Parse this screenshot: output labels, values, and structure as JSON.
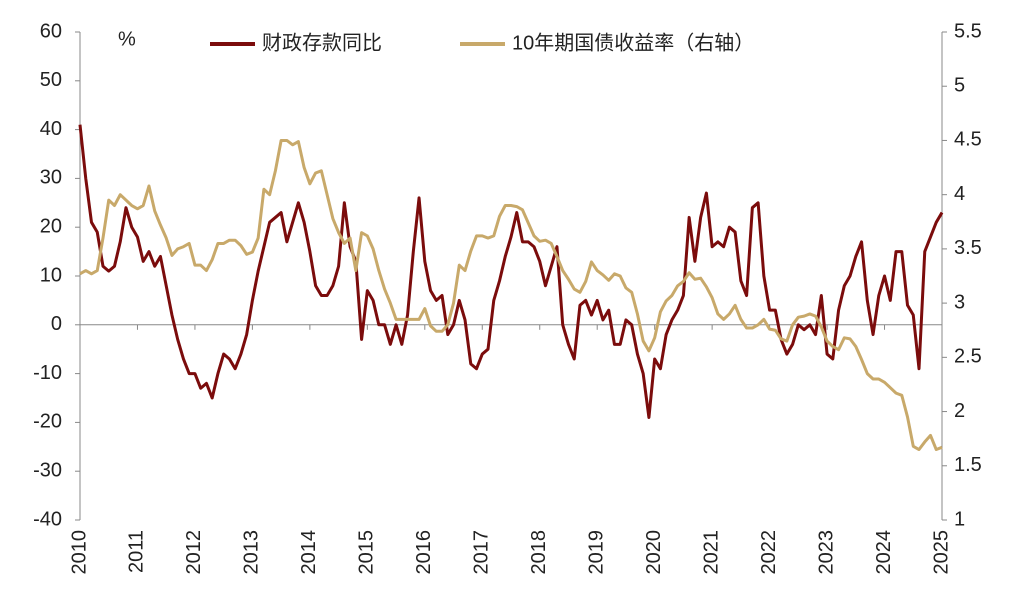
{
  "chart_data": {
    "type": "line",
    "ylabel": "%",
    "x": [
      2010,
      2010.1,
      2010.2,
      2010.3,
      2010.4,
      2010.5,
      2010.6,
      2010.7,
      2010.8,
      2010.9,
      2011,
      2011.1,
      2011.2,
      2011.3,
      2011.4,
      2011.5,
      2011.6,
      2011.7,
      2011.8,
      2011.9,
      2012,
      2012.1,
      2012.2,
      2012.3,
      2012.4,
      2012.5,
      2012.6,
      2012.7,
      2012.8,
      2012.9,
      2013,
      2013.1,
      2013.2,
      2013.3,
      2013.4,
      2013.5,
      2013.6,
      2013.7,
      2013.8,
      2013.9,
      2014,
      2014.1,
      2014.2,
      2014.3,
      2014.4,
      2014.5,
      2014.6,
      2014.7,
      2014.8,
      2014.9,
      2015,
      2015.1,
      2015.2,
      2015.3,
      2015.4,
      2015.5,
      2015.6,
      2015.7,
      2015.8,
      2015.9,
      2016,
      2016.1,
      2016.2,
      2016.3,
      2016.4,
      2016.5,
      2016.6,
      2016.7,
      2016.8,
      2016.9,
      2017,
      2017.1,
      2017.2,
      2017.3,
      2017.4,
      2017.5,
      2017.6,
      2017.7,
      2017.8,
      2017.9,
      2018,
      2018.1,
      2018.2,
      2018.3,
      2018.4,
      2018.5,
      2018.6,
      2018.7,
      2018.8,
      2018.9,
      2019,
      2019.1,
      2019.2,
      2019.3,
      2019.4,
      2019.5,
      2019.6,
      2019.7,
      2019.8,
      2019.9,
      2020,
      2020.1,
      2020.2,
      2020.3,
      2020.4,
      2020.5,
      2020.6,
      2020.7,
      2020.8,
      2020.9,
      2021,
      2021.1,
      2021.2,
      2021.3,
      2021.4,
      2021.5,
      2021.6,
      2021.7,
      2021.8,
      2021.9,
      2022,
      2022.1,
      2022.2,
      2022.3,
      2022.4,
      2022.5,
      2022.6,
      2022.7,
      2022.8,
      2022.9,
      2023,
      2023.1,
      2023.2,
      2023.3,
      2023.4,
      2023.5,
      2023.6,
      2023.7,
      2023.8,
      2023.9,
      2024,
      2024.1,
      2024.2,
      2024.3,
      2024.4,
      2024.5,
      2024.6,
      2024.7,
      2024.8,
      2024.9,
      2025
    ],
    "series": [
      {
        "name": "财政存款同比",
        "color": "#7b0c0c",
        "values": [
          41,
          30,
          21,
          19,
          12,
          11,
          12,
          17,
          24,
          20,
          18,
          13,
          15,
          12,
          14,
          8,
          2,
          -3,
          -7,
          -10,
          -10,
          -13,
          -12,
          -15,
          -10,
          -6,
          -7,
          -9,
          -6,
          -2,
          5,
          11,
          16,
          21,
          22,
          23,
          17,
          21,
          25,
          21,
          15,
          8,
          6,
          6,
          8,
          12,
          25,
          16,
          13,
          -3,
          7,
          5,
          0,
          0,
          -4,
          0,
          -4,
          2,
          15,
          26,
          13,
          7,
          5,
          6,
          -2,
          0,
          5,
          1,
          -8,
          -9,
          -6,
          -5,
          5,
          9,
          14,
          18,
          23,
          17,
          17,
          16,
          13,
          8,
          12,
          16,
          0,
          -4,
          -7,
          4,
          5,
          2,
          5,
          1,
          3,
          -4,
          -4,
          1,
          0,
          -6,
          -10,
          -19,
          -7,
          -9,
          -2,
          1,
          3,
          6,
          22,
          13,
          22,
          27,
          16,
          17,
          16,
          20,
          19,
          9,
          6,
          24,
          25,
          10,
          3,
          3,
          -3,
          -6,
          -4,
          0,
          -1,
          0,
          -2,
          6,
          -6,
          -7,
          3,
          8,
          10,
          14,
          17,
          5,
          -2,
          6,
          10,
          5,
          15,
          15,
          4,
          2,
          -9,
          15,
          18,
          21,
          23
        ]
      },
      {
        "name": "10年期国债收益率（右轴）",
        "color": "#c8a96a",
        "axis": "y2",
        "values": [
          3.27,
          3.3,
          3.27,
          3.3,
          3.6,
          3.95,
          3.9,
          4.0,
          3.95,
          3.9,
          3.87,
          3.9,
          4.08,
          3.85,
          3.72,
          3.6,
          3.44,
          3.5,
          3.52,
          3.55,
          3.35,
          3.35,
          3.3,
          3.4,
          3.55,
          3.55,
          3.58,
          3.58,
          3.53,
          3.45,
          3.47,
          3.6,
          4.05,
          4.0,
          4.22,
          4.5,
          4.5,
          4.46,
          4.49,
          4.25,
          4.1,
          4.2,
          4.22,
          4.0,
          3.78,
          3.65,
          3.55,
          3.6,
          3.3,
          3.65,
          3.62,
          3.5,
          3.3,
          3.13,
          3.0,
          2.85,
          2.85,
          2.85,
          2.85,
          2.85,
          2.95,
          2.79,
          2.74,
          2.74,
          2.8,
          3.0,
          3.35,
          3.3,
          3.48,
          3.62,
          3.62,
          3.6,
          3.62,
          3.8,
          3.9,
          3.9,
          3.89,
          3.86,
          3.74,
          3.62,
          3.57,
          3.58,
          3.55,
          3.43,
          3.3,
          3.22,
          3.13,
          3.1,
          3.2,
          3.38,
          3.3,
          3.26,
          3.21,
          3.27,
          3.25,
          3.14,
          3.1,
          2.9,
          2.65,
          2.56,
          2.68,
          2.92,
          3.02,
          3.07,
          3.16,
          3.2,
          3.28,
          3.22,
          3.23,
          3.15,
          3.05,
          2.9,
          2.85,
          2.9,
          2.98,
          2.85,
          2.77,
          2.77,
          2.8,
          2.85,
          2.76,
          2.75,
          2.67,
          2.65,
          2.8,
          2.87,
          2.88,
          2.9,
          2.88,
          2.78,
          2.65,
          2.6,
          2.57,
          2.68,
          2.67,
          2.6,
          2.48,
          2.35,
          2.3,
          2.3,
          2.27,
          2.22,
          2.17,
          2.15,
          1.95,
          1.68,
          1.65,
          1.72,
          1.78,
          1.65,
          1.67
        ]
      }
    ],
    "xlim": [
      2010,
      2025
    ],
    "xticks": [
      2010,
      2011,
      2012,
      2013,
      2014,
      2015,
      2016,
      2017,
      2018,
      2019,
      2020,
      2021,
      2022,
      2023,
      2024,
      2025
    ],
    "ylim": [
      -40,
      60
    ],
    "yticks": [
      -40,
      -30,
      -20,
      -10,
      0,
      10,
      20,
      30,
      40,
      50,
      60
    ],
    "y2lim": [
      1,
      5.5
    ],
    "y2ticks": [
      1,
      1.5,
      2,
      2.5,
      3,
      3.5,
      4,
      4.5,
      5,
      5.5
    ],
    "legend": "top"
  }
}
